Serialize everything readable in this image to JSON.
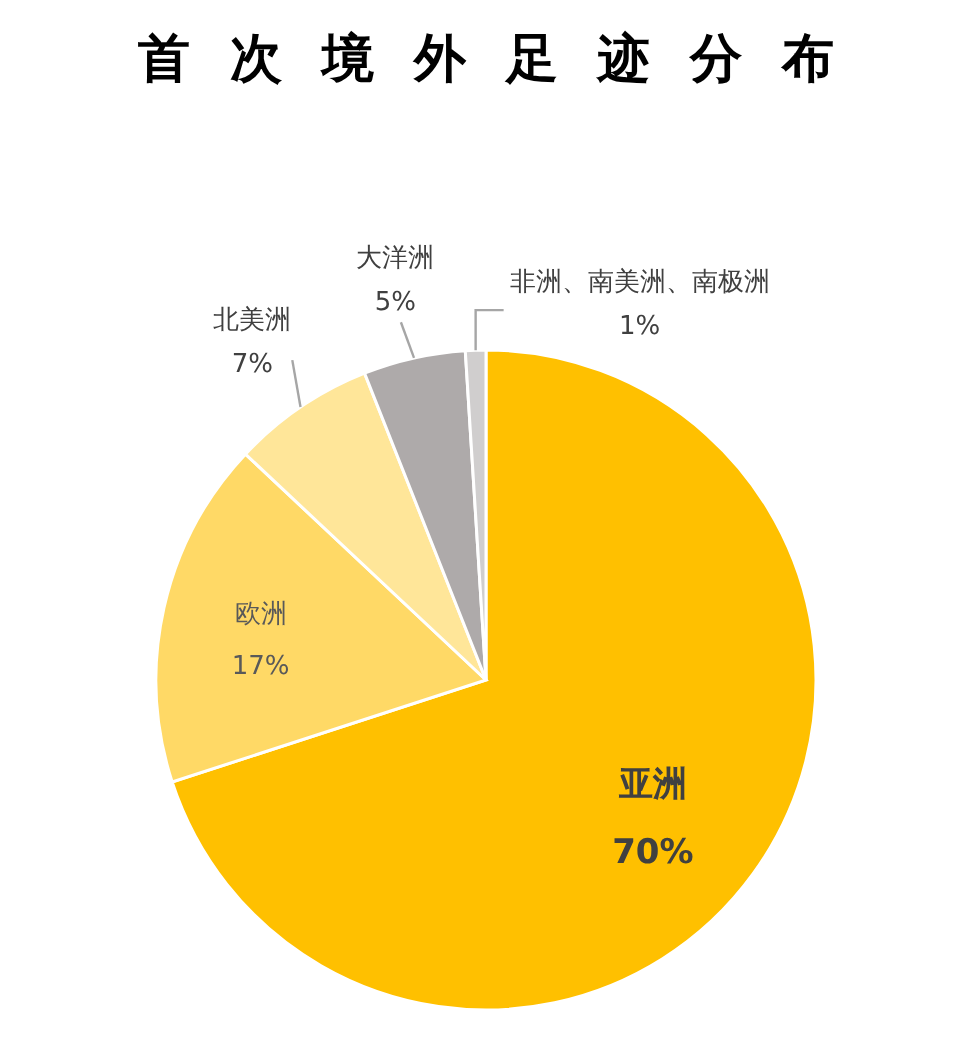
{
  "chart_data": {
    "type": "pie",
    "title": "首次境外足迹分布",
    "categories": [
      "亚洲",
      "欧洲",
      "北美洲",
      "大洋洲",
      "非洲、南美洲、南极洲"
    ],
    "values": [
      70,
      17,
      7,
      5,
      1
    ],
    "colors": [
      "#ffc000",
      "#ffd966",
      "#ffe699",
      "#aeaaaa",
      "#d0cece"
    ],
    "value_labels": [
      "70%",
      "17%",
      "7%",
      "5%",
      "1%"
    ]
  }
}
